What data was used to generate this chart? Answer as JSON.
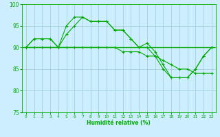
{
  "xlabel": "Humidité relative (%)",
  "background_color": "#cceeff",
  "grid_color": "#99cccc",
  "line_color": "#00aa00",
  "hours": [
    0,
    1,
    2,
    3,
    4,
    5,
    6,
    7,
    8,
    9,
    10,
    11,
    12,
    13,
    14,
    15,
    16,
    17,
    18,
    19,
    20,
    21,
    22,
    23
  ],
  "series1": [
    90,
    92,
    92,
    92,
    90,
    95,
    97,
    97,
    96,
    96,
    96,
    94,
    94,
    92,
    90,
    91,
    89,
    86,
    83,
    83,
    83,
    85,
    88,
    90
  ],
  "series2": [
    90,
    92,
    92,
    92,
    90,
    93,
    95,
    97,
    96,
    96,
    96,
    94,
    94,
    92,
    90,
    90,
    88,
    85,
    83,
    83,
    83,
    85,
    88,
    90
  ],
  "series3": [
    90,
    90,
    90,
    90,
    90,
    90,
    90,
    90,
    90,
    90,
    90,
    90,
    89,
    89,
    89,
    88,
    88,
    87,
    86,
    85,
    85,
    84,
    84,
    84
  ],
  "hline_y": 90,
  "ylim": [
    75,
    100
  ],
  "yticks": [
    75,
    80,
    85,
    90,
    95,
    100
  ],
  "xlim": [
    -0.5,
    23.5
  ],
  "lw": 0.8,
  "marker_size": 3,
  "marker_ew": 0.8
}
